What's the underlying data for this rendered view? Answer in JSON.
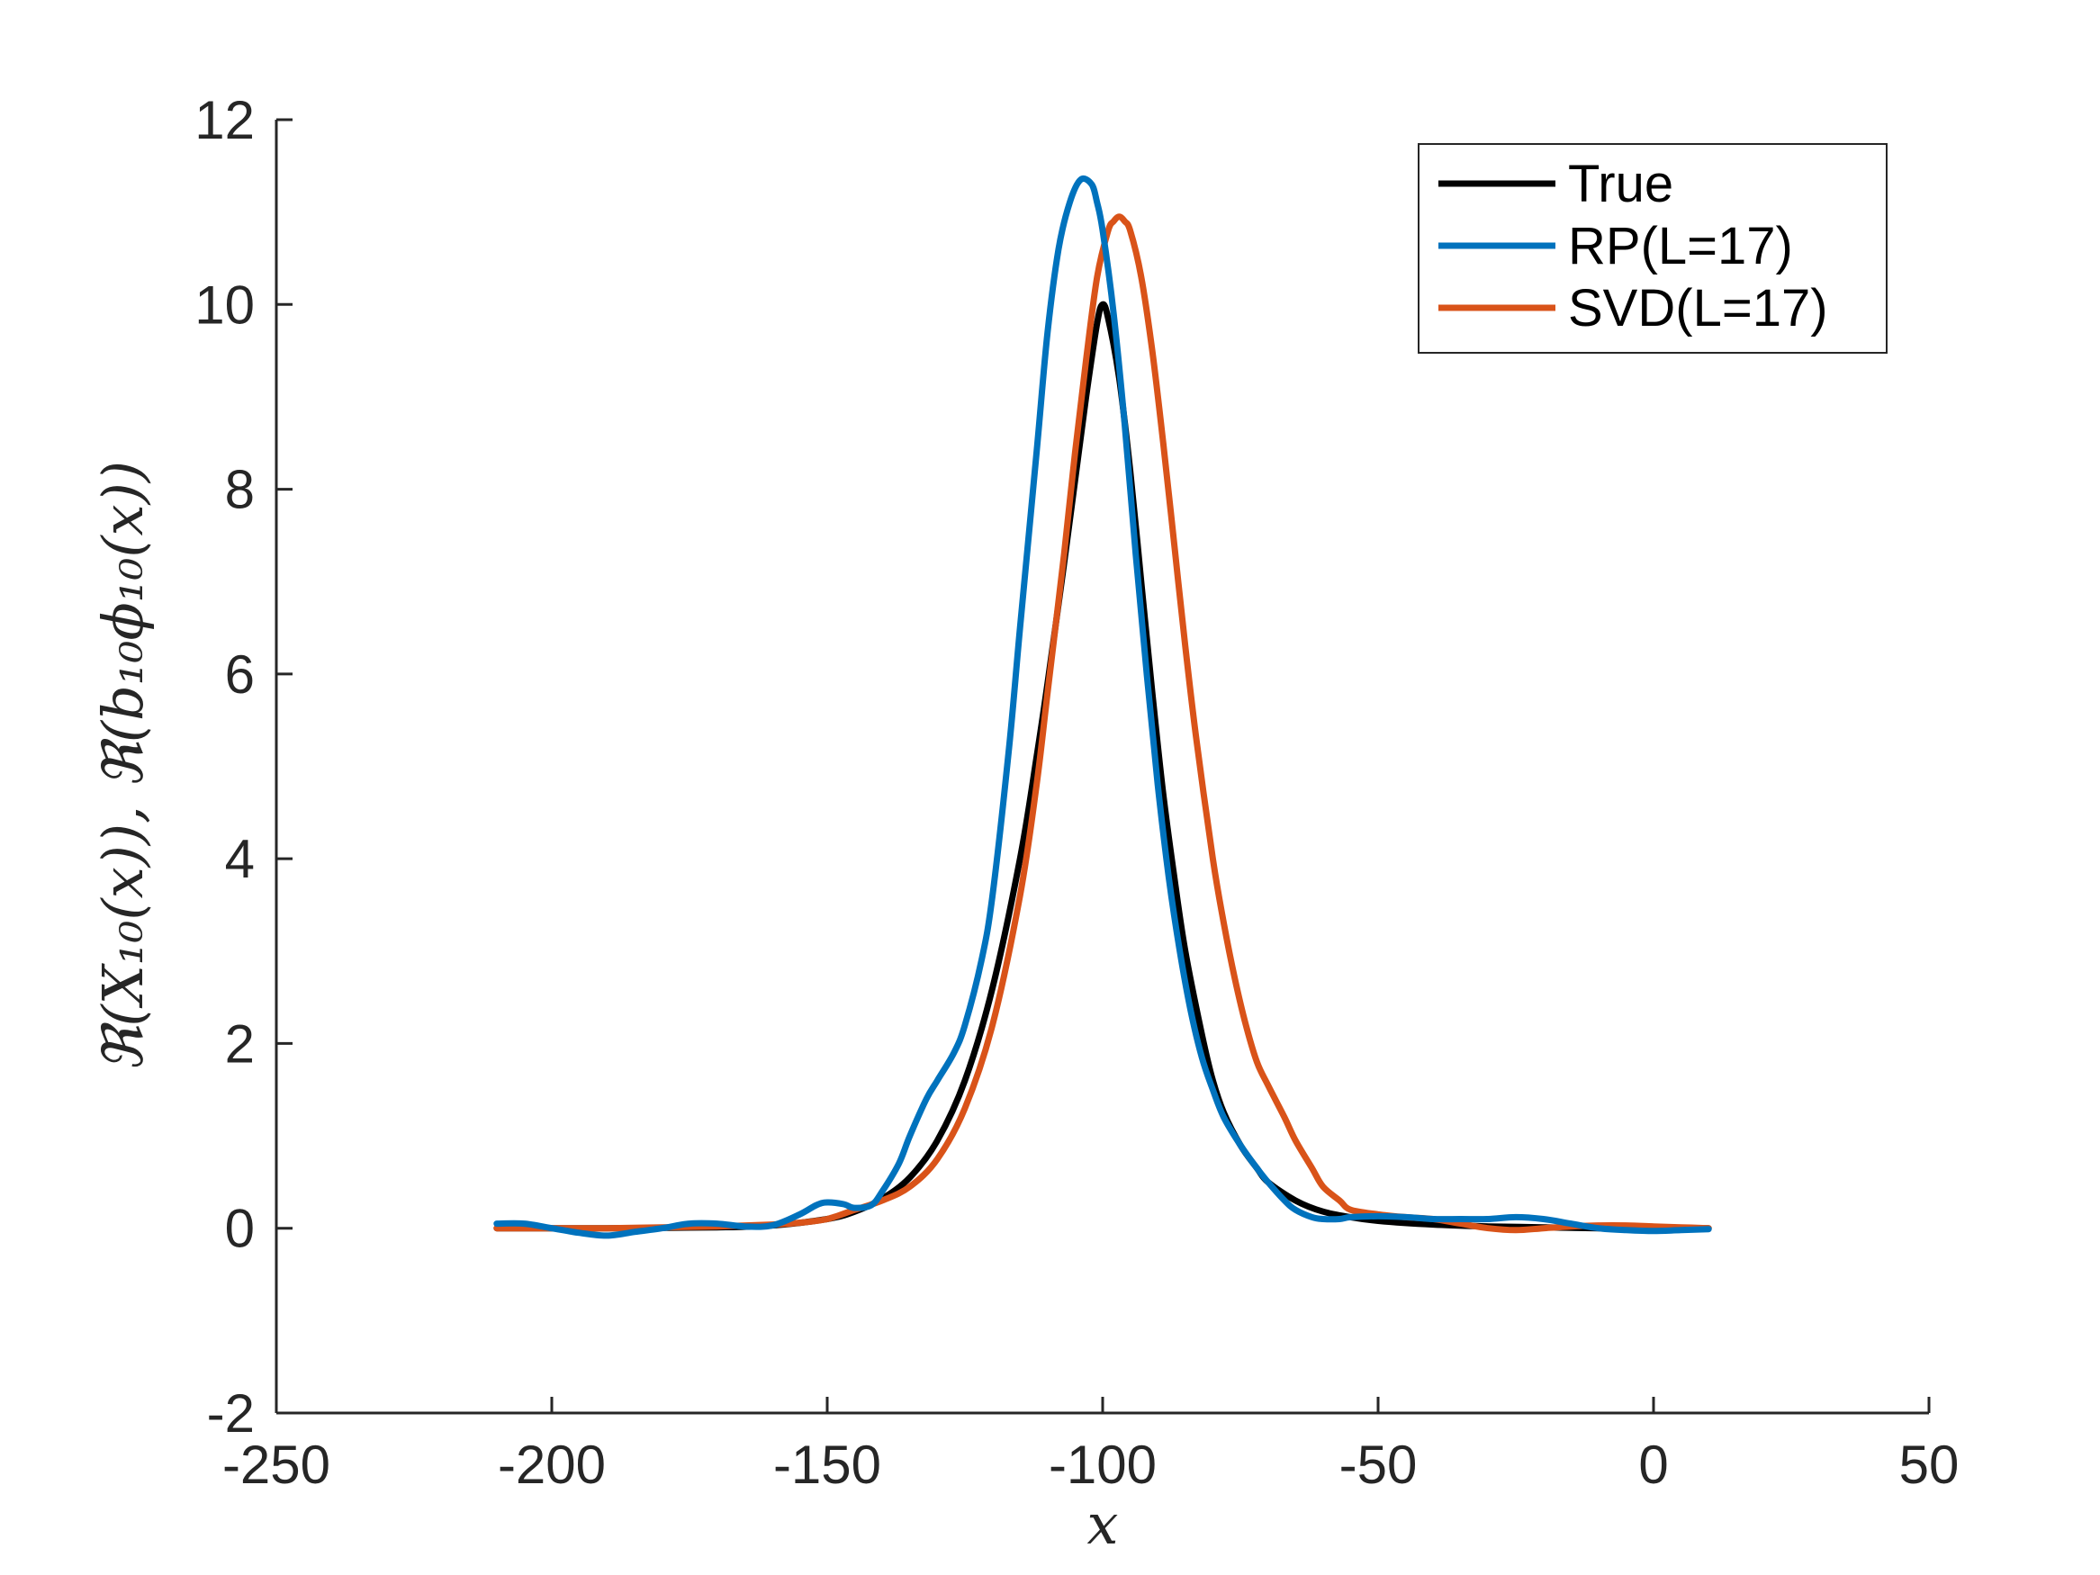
{
  "chart_data": {
    "type": "line",
    "xlabel": "x",
    "ylabel": "ℜ(X₁₀(x)), ℜ(b₁₀ϕ₁₀(x))",
    "xlim": [
      -250,
      50
    ],
    "ylim": [
      -2,
      12
    ],
    "xticks": [
      -250,
      -200,
      -150,
      -100,
      -50,
      0,
      50
    ],
    "yticks": [
      -2,
      0,
      2,
      4,
      6,
      8,
      10,
      12
    ],
    "xtick_labels": [
      "-250",
      "-200",
      "-150",
      "-100",
      "-50",
      "0",
      "50"
    ],
    "ytick_labels": [
      "-2",
      "0",
      "2",
      "4",
      "6",
      "8",
      "10",
      "12"
    ],
    "grid": false,
    "legend_position": "top-right",
    "series": [
      {
        "name": "True",
        "color": "#000000",
        "x": [
          -210,
          -190,
          -170,
          -160,
          -150,
          -145,
          -140,
          -135,
          -130,
          -125,
          -120,
          -115,
          -112,
          -110,
          -107,
          -105,
          -103,
          -101,
          -100,
          -99,
          -97,
          -95,
          -93,
          -91,
          -89,
          -87,
          -85,
          -82,
          -80,
          -78,
          -75,
          -72,
          -70,
          -65,
          -60,
          -55,
          -50,
          -40,
          -30,
          -20,
          -10,
          0,
          10
        ],
        "y": [
          0,
          0,
          0.01,
          0.03,
          0.1,
          0.18,
          0.32,
          0.55,
          0.95,
          1.6,
          2.6,
          4.0,
          5.1,
          5.9,
          7.2,
          8.1,
          9.0,
          9.8,
          10.0,
          9.85,
          9.2,
          8.2,
          7.0,
          5.8,
          4.7,
          3.8,
          3.0,
          2.1,
          1.6,
          1.25,
          0.9,
          0.65,
          0.5,
          0.3,
          0.18,
          0.12,
          0.08,
          0.04,
          0.02,
          0.01,
          0.0,
          0.0,
          0.0
        ]
      },
      {
        "name": "RP(L=17)",
        "color": "#0072BD",
        "x": [
          -210,
          -205,
          -200,
          -195,
          -190,
          -185,
          -180,
          -175,
          -170,
          -165,
          -160,
          -155,
          -152,
          -150,
          -147,
          -145,
          -142,
          -140,
          -137,
          -135,
          -132,
          -130,
          -127,
          -125,
          -122,
          -120,
          -117,
          -115,
          -112,
          -110,
          -108,
          -106,
          -104,
          -102,
          -101,
          -100,
          -98,
          -96,
          -94,
          -92,
          -90,
          -88,
          -86,
          -84,
          -82,
          -80,
          -78,
          -75,
          -72,
          -70,
          -67,
          -65,
          -62,
          -60,
          -57,
          -55,
          -50,
          -45,
          -40,
          -35,
          -30,
          -25,
          -20,
          -15,
          -10,
          -5,
          0,
          5,
          10
        ],
        "y": [
          0.05,
          0.05,
          0.0,
          -0.05,
          -0.08,
          -0.04,
          0.0,
          0.05,
          0.05,
          0.02,
          0.03,
          0.15,
          0.25,
          0.28,
          0.26,
          0.22,
          0.25,
          0.4,
          0.7,
          1.0,
          1.4,
          1.6,
          1.9,
          2.2,
          2.9,
          3.6,
          5.2,
          6.5,
          8.4,
          9.7,
          10.6,
          11.1,
          11.35,
          11.3,
          11.1,
          10.8,
          9.9,
          8.7,
          7.3,
          6.0,
          4.8,
          3.8,
          3.0,
          2.35,
          1.85,
          1.5,
          1.2,
          0.9,
          0.65,
          0.5,
          0.3,
          0.2,
          0.12,
          0.1,
          0.1,
          0.12,
          0.13,
          0.12,
          0.1,
          0.1,
          0.1,
          0.12,
          0.1,
          0.05,
          0.0,
          -0.02,
          -0.03,
          -0.02,
          -0.01
        ]
      },
      {
        "name": "SVD(L=17)",
        "color": "#D95319",
        "x": [
          -210,
          -200,
          -190,
          -180,
          -170,
          -160,
          -155,
          -150,
          -145,
          -140,
          -135,
          -130,
          -125,
          -120,
          -115,
          -112,
          -110,
          -107,
          -105,
          -103,
          -101,
          -99,
          -98,
          -97,
          -96,
          -95,
          -93,
          -91,
          -89,
          -87,
          -85,
          -83,
          -80,
          -78,
          -76,
          -74,
          -72,
          -70,
          -67,
          -65,
          -62,
          -60,
          -57,
          -55,
          -50,
          -45,
          -40,
          -35,
          -30,
          -25,
          -20,
          -15,
          -10,
          -5,
          0,
          5,
          10
        ],
        "y": [
          0,
          0,
          0,
          0.01,
          0.02,
          0.04,
          0.06,
          0.1,
          0.2,
          0.3,
          0.45,
          0.75,
          1.3,
          2.2,
          3.6,
          4.8,
          5.8,
          7.3,
          8.4,
          9.4,
          10.3,
          10.8,
          10.9,
          10.95,
          10.9,
          10.8,
          10.3,
          9.5,
          8.5,
          7.4,
          6.3,
          5.3,
          4.0,
          3.3,
          2.7,
          2.2,
          1.8,
          1.55,
          1.2,
          0.95,
          0.65,
          0.45,
          0.3,
          0.2,
          0.15,
          0.12,
          0.1,
          0.05,
          0.0,
          -0.02,
          0.0,
          0.02,
          0.03,
          0.03,
          0.02,
          0.01,
          0.0
        ]
      }
    ]
  }
}
